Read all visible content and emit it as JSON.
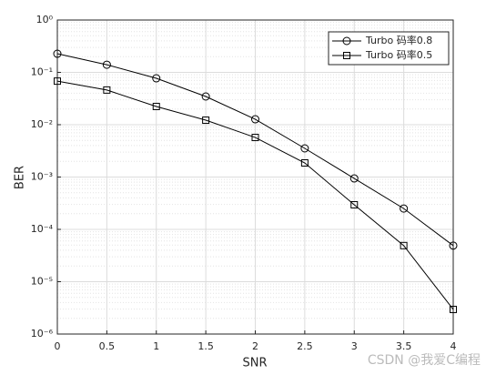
{
  "chart_data": {
    "type": "line",
    "x_label": "SNR",
    "y_label": "BER",
    "x": [
      0,
      0.5,
      1,
      1.5,
      2,
      2.5,
      3,
      3.5,
      4
    ],
    "series": [
      {
        "name": "Turbo 码率0.8",
        "color": "#000000",
        "marker": "circle",
        "values": [
          0.227,
          0.14,
          0.077,
          0.0346,
          0.0127,
          0.00353,
          0.00094,
          0.00025,
          4.9e-05
        ]
      },
      {
        "name": "Turbo 码率0.5",
        "color": "#000000",
        "marker": "square",
        "values": [
          0.068,
          0.046,
          0.0223,
          0.0122,
          0.0057,
          0.00186,
          0.000295,
          4.9e-05,
          2.95e-06
        ]
      }
    ],
    "xlim": [
      0,
      4
    ],
    "xticks": [
      0,
      0.5,
      1,
      1.5,
      2,
      2.5,
      3,
      3.5,
      4
    ],
    "ylim": [
      1e-06,
      1
    ],
    "log_y": true,
    "yticks": [
      {
        "value": 1e-06,
        "label": "10⁻⁶"
      },
      {
        "value": 1e-05,
        "label": "10⁻⁵"
      },
      {
        "value": 0.0001,
        "label": "10⁻⁴"
      },
      {
        "value": 0.001,
        "label": "10⁻³"
      },
      {
        "value": 0.01,
        "label": "10⁻²"
      },
      {
        "value": 0.1,
        "label": "10⁻¹"
      },
      {
        "value": 1,
        "label": "10⁰"
      }
    ],
    "grid": true,
    "minor_grid": true,
    "legend": "upper right",
    "watermark": "CSDN @我爱C编程"
  }
}
